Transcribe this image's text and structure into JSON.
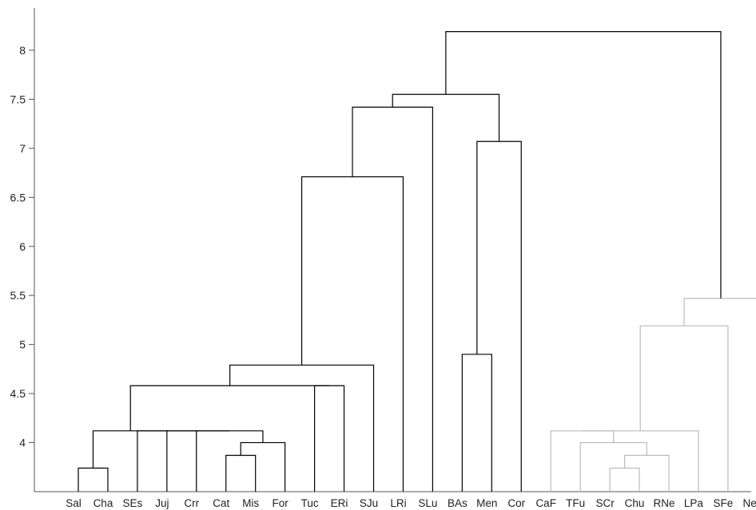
{
  "chart_data": {
    "type": "dendrogram",
    "title": "",
    "xlabel": "",
    "ylabel": "",
    "ylim": [
      3.5,
      8.45
    ],
    "yticks": [
      4,
      4.5,
      5,
      5.5,
      6,
      6.5,
      7,
      7.5,
      8
    ],
    "ytick_labels": [
      "4",
      "4.5",
      "5",
      "5.5",
      "6",
      "6.5",
      "7",
      "7.5",
      "8"
    ],
    "grid": false,
    "leaves": [
      "Sal",
      "Cha",
      "SEs",
      "Juj",
      "Crr",
      "Cat",
      "Mis",
      "For",
      "Tuc",
      "ERi",
      "SJu",
      "LRi",
      "SLu",
      "BAs",
      "Men",
      "Cor",
      "CaF",
      "TFu",
      "SCr",
      "Chu",
      "RNe",
      "LPa",
      "SFe",
      "Neu"
    ],
    "colors": {
      "main_cluster": "#000000",
      "secondary_cluster": "#bbbbbb",
      "axis": "#555555",
      "text": "#222222"
    },
    "merges": [
      {
        "id": 24,
        "left": 0,
        "right": 1,
        "height": 3.74,
        "color": "main_cluster"
      },
      {
        "id": 25,
        "left": 5,
        "right": 6,
        "height": 3.87,
        "color": "main_cluster"
      },
      {
        "id": 26,
        "left": 25,
        "right": 7,
        "height": 4.0,
        "color": "main_cluster"
      },
      {
        "id": 27,
        "left": 4,
        "right": 26,
        "height": 4.12,
        "color": "main_cluster"
      },
      {
        "id": 28,
        "left": 3,
        "right": 27,
        "height": 4.12,
        "color": "main_cluster"
      },
      {
        "id": 29,
        "left": 2,
        "right": 28,
        "height": 4.12,
        "color": "main_cluster"
      },
      {
        "id": 30,
        "left": 24,
        "right": 29,
        "height": 4.12,
        "color": "main_cluster"
      },
      {
        "id": 31,
        "left": 8,
        "right": 9,
        "height": 4.58,
        "color": "main_cluster"
      },
      {
        "id": 32,
        "left": 30,
        "right": 31,
        "height": 4.58,
        "color": "main_cluster"
      },
      {
        "id": 33,
        "left": 32,
        "right": 10,
        "height": 4.79,
        "color": "main_cluster"
      },
      {
        "id": 34,
        "left": 33,
        "right": 11,
        "height": 6.71,
        "color": "main_cluster"
      },
      {
        "id": 35,
        "left": 34,
        "right": 12,
        "height": 7.42,
        "color": "main_cluster"
      },
      {
        "id": 36,
        "left": 13,
        "right": 14,
        "height": 4.9,
        "color": "main_cluster"
      },
      {
        "id": 37,
        "left": 36,
        "right": 15,
        "height": 7.07,
        "color": "main_cluster"
      },
      {
        "id": 38,
        "left": 35,
        "right": 37,
        "height": 7.55,
        "color": "main_cluster"
      },
      {
        "id": 39,
        "left": 18,
        "right": 19,
        "height": 3.74,
        "color": "secondary_cluster"
      },
      {
        "id": 40,
        "left": 39,
        "right": 20,
        "height": 3.87,
        "color": "secondary_cluster"
      },
      {
        "id": 41,
        "left": 17,
        "right": 40,
        "height": 4.0,
        "color": "secondary_cluster"
      },
      {
        "id": 42,
        "left": 16,
        "right": 41,
        "height": 4.12,
        "color": "secondary_cluster"
      },
      {
        "id": 43,
        "left": 42,
        "right": 21,
        "height": 4.12,
        "color": "secondary_cluster"
      },
      {
        "id": 44,
        "left": 43,
        "right": 22,
        "height": 5.19,
        "color": "secondary_cluster"
      },
      {
        "id": 45,
        "left": 44,
        "right": 23,
        "height": 5.47,
        "color": "secondary_cluster"
      },
      {
        "id": 46,
        "left": 38,
        "right": 45,
        "height": 8.19,
        "color": "main_cluster"
      }
    ]
  }
}
